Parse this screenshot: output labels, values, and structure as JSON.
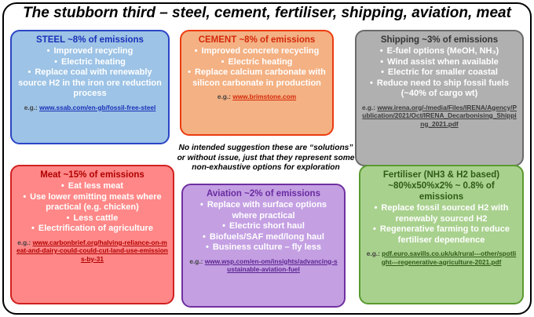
{
  "title": "The stubborn third – steel, cement, fertiliser, shipping, aviation, meat",
  "note": "No intended suggestion these are “solutions” or without issue, just that they represent some non-exhaustive options for exploration",
  "boxes": {
    "steel": {
      "heading": "STEEL ~8% of emissions",
      "items": [
        "Improved recycling",
        "Electric heating",
        "Replace coal with renewably source H2 in the iron ore reduction process"
      ],
      "eg": "e.g.:",
      "url": "www.ssab.com/en-gb/fossil-free-steel"
    },
    "cement": {
      "heading": "CEMENT ~8% of emissions",
      "items": [
        "Improved concrete recycling",
        "Electric heating",
        "Replace calcium carbonate with silicon carbonate in production"
      ],
      "eg": "e.g.:",
      "url": "www.brimstone.com"
    },
    "shipping": {
      "heading": "Shipping ~3% of emissions",
      "items": [
        "E-fuel options (MeOH, NH₃)",
        "Wind assist when available",
        "Electric for smaller coastal",
        "Reduce need to ship fossil fuels (~40% of cargo wt)"
      ],
      "eg": "e.g.:",
      "url": "www.irena.org/-/media/Files/IRENA/Agency/Publication/2021/Oct/IRENA_Decarbonising_Shipping_2021.pdf"
    },
    "meat": {
      "heading": "Meat ~15% of emissions",
      "items": [
        "Eat less meat",
        "Use lower emitting meats where practical (e.g. chicken)",
        "Less cattle",
        "Electrification of agriculture"
      ],
      "eg": "e.g.:",
      "url": "www.carbonbrief.org/halving-reliance-on-meat-and-dairy-could-could-cut-land-use-emissions-by-31"
    },
    "aviation": {
      "heading": "Aviation ~2% of emissions",
      "items": [
        "Replace with surface options where practical",
        "Electric short haul",
        "Biofuels/SAF med/long haul",
        "Business culture – fly less"
      ],
      "eg": "e.g.:",
      "url": "www.wsp.com/en-om/insights/advancing-sustainable-aviation-fuel"
    },
    "fertiliser": {
      "heading": "Fertiliser (NH3 & H2 based) ~80%x50%x2% ~ 0.8% of emissions",
      "items": [
        "Replace fossil sourced H2 with renewably sourced H2",
        "Regenerative farming to reduce fertiliser dependence"
      ],
      "eg": "e.g.:",
      "url": "pdf.euro.savills.co.uk/uk/rural---other/spotlight---regenerative-agriculture-2021.pdf"
    }
  },
  "colors": {
    "steel_fill": "#9dc3e6",
    "cement_fill": "#f4b183",
    "shipping_fill": "#b0b0b0",
    "meat_fill": "#ff8787",
    "aviation_fill": "#c4a0e3",
    "fertiliser_fill": "#a9d18e"
  }
}
